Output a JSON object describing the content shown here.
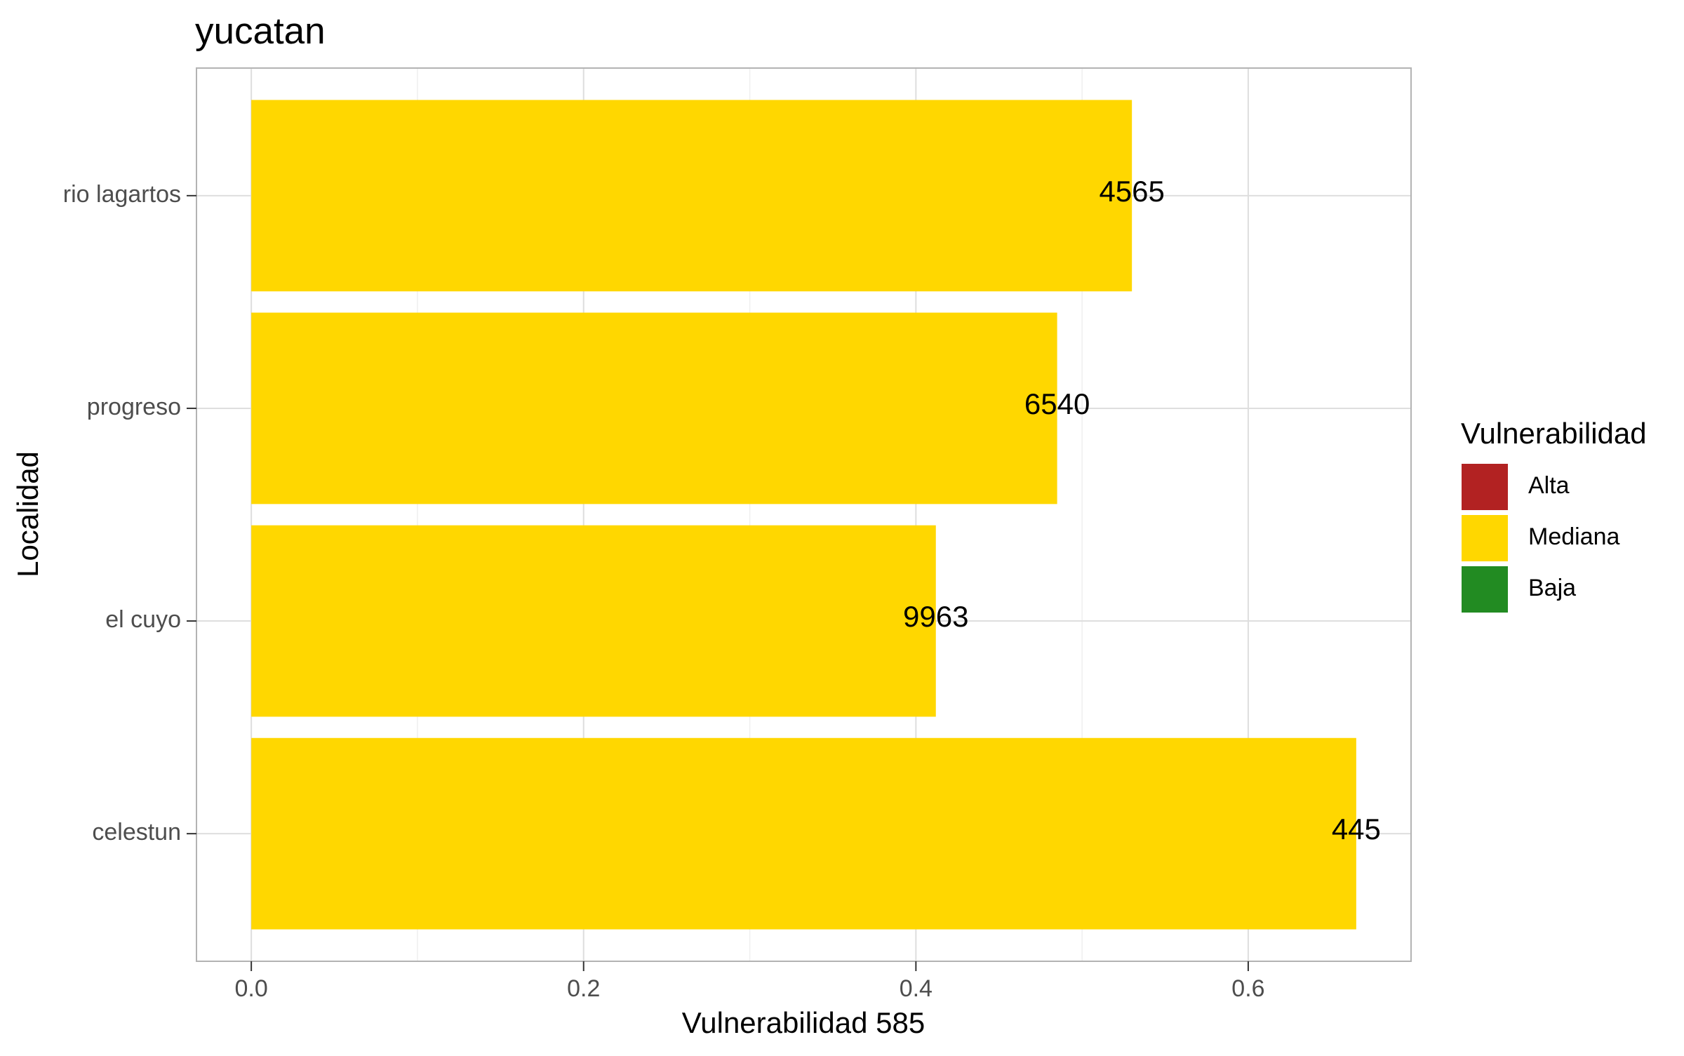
{
  "chart_data": {
    "type": "bar",
    "orientation": "horizontal",
    "title": "yucatan",
    "xlabel": "Vulnerabilidad 585",
    "ylabel": "Localidad",
    "categories": [
      "celestun",
      "el cuyo",
      "progreso",
      "rio lagartos"
    ],
    "values": [
      0.665,
      0.412,
      0.485,
      0.53
    ],
    "data_labels": [
      "445",
      "9963",
      "6540",
      "4565"
    ],
    "value_class": [
      "Mediana",
      "Mediana",
      "Mediana",
      "Mediana"
    ],
    "xlim": [
      -0.033,
      0.698
    ],
    "x_ticks": [
      0.0,
      0.2,
      0.4,
      0.6
    ],
    "x_tick_labels": [
      "0.0",
      "0.2",
      "0.4",
      "0.6"
    ],
    "grid": true,
    "legend": {
      "title": "Vulnerabilidad",
      "position": "right",
      "items": [
        {
          "label": "Alta",
          "color": "#b22222"
        },
        {
          "label": "Mediana",
          "color": "#ffd700"
        },
        {
          "label": "Baja",
          "color": "#228b22"
        }
      ]
    },
    "colors": {
      "bar": "#ffd700",
      "panel_border": "#b3b3b3",
      "grid_major": "#dedede",
      "grid_minor": "#efefef",
      "tick": "#333333"
    }
  }
}
